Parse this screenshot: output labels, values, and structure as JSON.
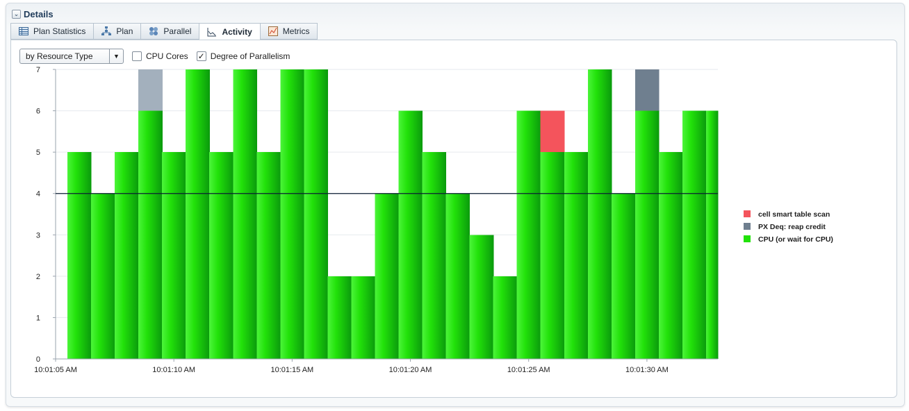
{
  "panel": {
    "title": "Details",
    "toggle_icon": "chevron-down-icon"
  },
  "tabs": [
    {
      "label": "Plan Statistics",
      "icon": "table-icon",
      "active": false
    },
    {
      "label": "Plan",
      "icon": "plan-tree-icon",
      "active": false
    },
    {
      "label": "Parallel",
      "icon": "parallel-icon",
      "active": false
    },
    {
      "label": "Activity",
      "icon": "activity-chart-icon",
      "active": true
    },
    {
      "label": "Metrics",
      "icon": "metrics-icon",
      "active": false
    }
  ],
  "toolbar": {
    "group_by": {
      "value": "by Resource Type"
    },
    "cpu_cores": {
      "label": "CPU Cores",
      "checked": false
    },
    "dop": {
      "label": "Degree of Parallelism",
      "checked": true
    }
  },
  "colors": {
    "cpu_light": "#4cf53a",
    "cpu_mid": "#22e20a",
    "cpu_dark": "#0a9a0c",
    "px_deq": "#6f7f8f",
    "cell_scan": "#f4545c",
    "dop_line": "#0b1e33"
  },
  "chart_data": {
    "type": "area",
    "stacked": true,
    "step": true,
    "x": [
      "10:01:05 AM",
      "10:01:06 AM",
      "10:01:07 AM",
      "10:01:08 AM",
      "10:01:09 AM",
      "10:01:10 AM",
      "10:01:11 AM",
      "10:01:12 AM",
      "10:01:13 AM",
      "10:01:14 AM",
      "10:01:15 AM",
      "10:01:16 AM",
      "10:01:17 AM",
      "10:01:18 AM",
      "10:01:19 AM",
      "10:01:20 AM",
      "10:01:21 AM",
      "10:01:22 AM",
      "10:01:23 AM",
      "10:01:24 AM",
      "10:01:25 AM",
      "10:01:26 AM",
      "10:01:27 AM",
      "10:01:28 AM",
      "10:01:29 AM",
      "10:01:30 AM",
      "10:01:31 AM",
      "10:01:32 AM",
      "10:01:33 AM"
    ],
    "x_tick_labels": [
      "10:01:05 AM",
      "10:01:10 AM",
      "10:01:15 AM",
      "10:01:20 AM",
      "10:01:25 AM",
      "10:01:30 AM"
    ],
    "series": [
      {
        "name": "CPU (or wait for CPU)",
        "values": [
          0,
          5,
          4,
          5,
          6,
          5,
          7,
          5,
          7,
          5,
          7,
          7,
          2,
          2,
          4,
          6,
          5,
          4,
          3,
          2,
          6,
          5,
          5,
          7,
          4,
          6,
          5,
          6,
          6
        ]
      },
      {
        "name": "PX Deq: reap credit",
        "values": [
          0,
          0,
          0,
          0,
          1,
          0,
          0,
          0,
          0,
          0,
          0,
          0,
          0,
          0,
          0,
          0,
          0,
          0,
          0,
          0,
          0,
          0,
          0,
          0,
          0,
          1,
          0,
          0,
          0
        ]
      },
      {
        "name": "cell smart table scan",
        "values": [
          0,
          0,
          0,
          0,
          0,
          0,
          0,
          0,
          0,
          0,
          0,
          0,
          0,
          0,
          0,
          0,
          0,
          0,
          0,
          0,
          0,
          1,
          0,
          0,
          0,
          0,
          0,
          0,
          0
        ]
      }
    ],
    "reference_line": {
      "name": "Degree of Parallelism",
      "value": 4
    },
    "y_ticks": [
      0,
      1,
      2,
      3,
      4,
      5,
      6,
      7
    ],
    "ylim": [
      0,
      7
    ],
    "legend_position": "right",
    "legend_order": [
      "cell smart table scan",
      "PX Deq: reap credit",
      "CPU (or wait for CPU)"
    ],
    "grid": true
  }
}
